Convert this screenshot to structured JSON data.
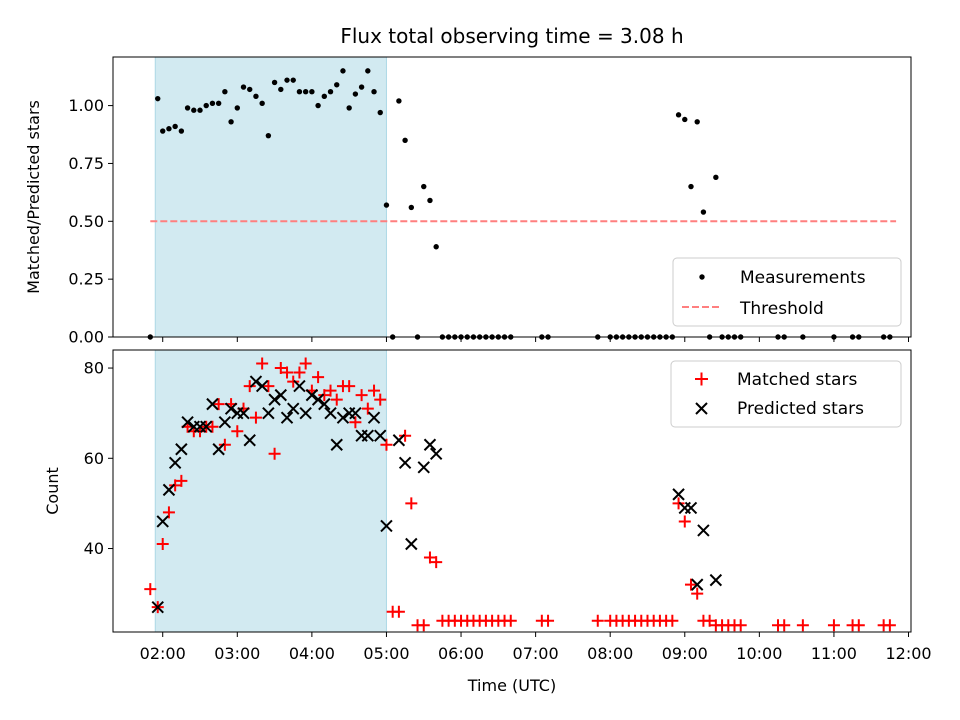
{
  "title": "Flux total observing time = 3.08 h",
  "xlabel": "Time (UTC)",
  "x_ticks": [
    "02:00",
    "03:00",
    "04:00",
    "05:00",
    "06:00",
    "07:00",
    "08:00",
    "09:00",
    "10:00",
    "11:00",
    "12:00"
  ],
  "colors": {
    "shaded_region": "#add8e6",
    "measurements": "#000000",
    "threshold": "#ff7f7f",
    "matched": "#ff0000",
    "predicted": "#000000"
  },
  "chart_data": [
    {
      "type": "scatter",
      "panel": "top",
      "ylabel": "Matched/Predicted stars",
      "xlim": [
        "01:20",
        "12:02"
      ],
      "ylim": [
        0,
        1.21
      ],
      "y_ticks": [
        "0.00",
        "0.25",
        "0.50",
        "0.75",
        "1.00"
      ],
      "y_tick_values": [
        0,
        0.25,
        0.5,
        0.75,
        1.0
      ],
      "shaded_span": [
        "01:54",
        "05:00"
      ],
      "threshold": {
        "name": "Threshold",
        "value": 0.5,
        "x_range": [
          "01:50",
          "11:50"
        ]
      },
      "legend": {
        "position": "lower-right",
        "entries": [
          "Measurements",
          "Threshold"
        ]
      },
      "series": [
        {
          "name": "Measurements",
          "points": [
            [
              "01:50",
              0.0
            ],
            [
              "01:56",
              1.03
            ],
            [
              "02:00",
              0.89
            ],
            [
              "02:05",
              0.9
            ],
            [
              "02:10",
              0.91
            ],
            [
              "02:15",
              0.89
            ],
            [
              "02:20",
              0.99
            ],
            [
              "02:25",
              0.98
            ],
            [
              "02:30",
              0.98
            ],
            [
              "02:35",
              1.0
            ],
            [
              "02:40",
              1.01
            ],
            [
              "02:45",
              1.01
            ],
            [
              "02:50",
              1.06
            ],
            [
              "02:55",
              0.93
            ],
            [
              "03:00",
              0.99
            ],
            [
              "03:05",
              1.08
            ],
            [
              "03:10",
              1.07
            ],
            [
              "03:15",
              1.04
            ],
            [
              "03:20",
              1.01
            ],
            [
              "03:25",
              0.87
            ],
            [
              "03:30",
              1.1
            ],
            [
              "03:35",
              1.07
            ],
            [
              "03:40",
              1.11
            ],
            [
              "03:45",
              1.11
            ],
            [
              "03:50",
              1.06
            ],
            [
              "03:55",
              1.06
            ],
            [
              "04:00",
              1.06
            ],
            [
              "04:05",
              1.0
            ],
            [
              "04:10",
              1.04
            ],
            [
              "04:15",
              1.06
            ],
            [
              "04:20",
              1.09
            ],
            [
              "04:25",
              1.15
            ],
            [
              "04:30",
              0.99
            ],
            [
              "04:35",
              1.05
            ],
            [
              "04:40",
              1.08
            ],
            [
              "04:45",
              1.15
            ],
            [
              "04:50",
              1.06
            ],
            [
              "04:55",
              0.97
            ],
            [
              "05:00",
              0.57
            ],
            [
              "05:05",
              0.0
            ],
            [
              "05:10",
              1.02
            ],
            [
              "05:15",
              0.85
            ],
            [
              "05:20",
              0.56
            ],
            [
              "05:25",
              0.0
            ],
            [
              "05:30",
              0.65
            ],
            [
              "05:35",
              0.59
            ],
            [
              "05:40",
              0.39
            ],
            [
              "05:45",
              0.0
            ],
            [
              "05:50",
              0.0
            ],
            [
              "05:55",
              0.0
            ],
            [
              "06:00",
              0.0
            ],
            [
              "06:05",
              0.0
            ],
            [
              "06:10",
              0.0
            ],
            [
              "06:15",
              0.0
            ],
            [
              "06:20",
              0.0
            ],
            [
              "06:25",
              0.0
            ],
            [
              "06:30",
              0.0
            ],
            [
              "06:35",
              0.0
            ],
            [
              "06:40",
              0.0
            ],
            [
              "07:05",
              0.0
            ],
            [
              "07:10",
              0.0
            ],
            [
              "07:50",
              0.0
            ],
            [
              "08:00",
              0.0
            ],
            [
              "08:05",
              0.0
            ],
            [
              "08:10",
              0.0
            ],
            [
              "08:15",
              0.0
            ],
            [
              "08:20",
              0.0
            ],
            [
              "08:25",
              0.0
            ],
            [
              "08:30",
              0.0
            ],
            [
              "08:35",
              0.0
            ],
            [
              "08:40",
              0.0
            ],
            [
              "08:45",
              0.0
            ],
            [
              "08:50",
              0.0
            ],
            [
              "08:55",
              0.96
            ],
            [
              "09:00",
              0.94
            ],
            [
              "09:05",
              0.65
            ],
            [
              "09:10",
              0.93
            ],
            [
              "09:15",
              0.54
            ],
            [
              "09:20",
              0.0
            ],
            [
              "09:25",
              0.69
            ],
            [
              "09:30",
              0.0
            ],
            [
              "09:35",
              0.0
            ],
            [
              "09:40",
              0.0
            ],
            [
              "09:45",
              0.0
            ],
            [
              "10:15",
              0.0
            ],
            [
              "10:20",
              0.0
            ],
            [
              "10:35",
              0.0
            ],
            [
              "11:00",
              0.0
            ],
            [
              "11:15",
              0.0
            ],
            [
              "11:20",
              0.0
            ],
            [
              "11:40",
              0.0
            ],
            [
              "11:45",
              0.0
            ]
          ]
        }
      ]
    },
    {
      "type": "scatter",
      "panel": "bottom",
      "ylabel": "Count",
      "xlim": [
        "01:20",
        "12:02"
      ],
      "ylim": [
        21.5,
        84
      ],
      "y_ticks": [
        "40",
        "60",
        "80"
      ],
      "y_tick_values": [
        40,
        60,
        80
      ],
      "shaded_span": [
        "01:54",
        "05:00"
      ],
      "legend": {
        "position": "top-right",
        "entries": [
          "Matched stars",
          "Predicted stars"
        ]
      },
      "series": [
        {
          "name": "Matched stars",
          "marker": "plus",
          "points": [
            [
              "01:50",
              31
            ],
            [
              "01:56",
              27
            ],
            [
              "02:00",
              41
            ],
            [
              "02:05",
              48
            ],
            [
              "02:10",
              54
            ],
            [
              "02:15",
              55
            ],
            [
              "02:20",
              67
            ],
            [
              "02:25",
              66
            ],
            [
              "02:30",
              66
            ],
            [
              "02:35",
              67
            ],
            [
              "02:40",
              67
            ],
            [
              "02:45",
              72
            ],
            [
              "02:50",
              63
            ],
            [
              "02:55",
              72
            ],
            [
              "03:00",
              66
            ],
            [
              "03:05",
              71
            ],
            [
              "03:10",
              76
            ],
            [
              "03:15",
              69
            ],
            [
              "03:20",
              81
            ],
            [
              "03:25",
              76
            ],
            [
              "03:30",
              61
            ],
            [
              "03:35",
              80
            ],
            [
              "03:40",
              79
            ],
            [
              "03:45",
              77
            ],
            [
              "03:50",
              79
            ],
            [
              "03:55",
              81
            ],
            [
              "04:00",
              75
            ],
            [
              "04:05",
              78
            ],
            [
              "04:10",
              74
            ],
            [
              "04:15",
              75
            ],
            [
              "04:20",
              73
            ],
            [
              "04:25",
              76
            ],
            [
              "04:30",
              76
            ],
            [
              "04:35",
              68
            ],
            [
              "04:40",
              74
            ],
            [
              "04:45",
              71
            ],
            [
              "04:50",
              75
            ],
            [
              "04:55",
              73
            ],
            [
              "05:00",
              63
            ],
            [
              "05:05",
              26
            ],
            [
              "05:10",
              26
            ],
            [
              "05:15",
              65
            ],
            [
              "05:20",
              50
            ],
            [
              "05:25",
              23
            ],
            [
              "05:30",
              23
            ],
            [
              "05:35",
              38
            ],
            [
              "05:40",
              37
            ],
            [
              "05:45",
              24
            ],
            [
              "05:50",
              24
            ],
            [
              "05:55",
              24
            ],
            [
              "06:00",
              24
            ],
            [
              "06:05",
              24
            ],
            [
              "06:10",
              24
            ],
            [
              "06:15",
              24
            ],
            [
              "06:20",
              24
            ],
            [
              "06:25",
              24
            ],
            [
              "06:30",
              24
            ],
            [
              "06:35",
              24
            ],
            [
              "06:40",
              24
            ],
            [
              "07:05",
              24
            ],
            [
              "07:10",
              24
            ],
            [
              "07:50",
              24
            ],
            [
              "08:00",
              24
            ],
            [
              "08:05",
              24
            ],
            [
              "08:10",
              24
            ],
            [
              "08:15",
              24
            ],
            [
              "08:20",
              24
            ],
            [
              "08:25",
              24
            ],
            [
              "08:30",
              24
            ],
            [
              "08:35",
              24
            ],
            [
              "08:40",
              24
            ],
            [
              "08:45",
              24
            ],
            [
              "08:50",
              24
            ],
            [
              "08:55",
              50
            ],
            [
              "09:00",
              46
            ],
            [
              "09:05",
              32
            ],
            [
              "09:10",
              30
            ],
            [
              "09:15",
              24
            ],
            [
              "09:20",
              24
            ],
            [
              "09:25",
              23
            ],
            [
              "09:30",
              23
            ],
            [
              "09:35",
              23
            ],
            [
              "09:40",
              23
            ],
            [
              "09:45",
              23
            ],
            [
              "10:15",
              23
            ],
            [
              "10:20",
              23
            ],
            [
              "10:35",
              23
            ],
            [
              "11:00",
              23
            ],
            [
              "11:15",
              23
            ],
            [
              "11:20",
              23
            ],
            [
              "11:40",
              23
            ],
            [
              "11:45",
              23
            ]
          ]
        },
        {
          "name": "Predicted stars",
          "marker": "x",
          "points": [
            [
              "01:56",
              27
            ],
            [
              "02:00",
              46
            ],
            [
              "02:05",
              53
            ],
            [
              "02:10",
              59
            ],
            [
              "02:15",
              62
            ],
            [
              "02:20",
              68
            ],
            [
              "02:25",
              67
            ],
            [
              "02:30",
              67
            ],
            [
              "02:35",
              67
            ],
            [
              "02:40",
              72
            ],
            [
              "02:45",
              62
            ],
            [
              "02:50",
              68
            ],
            [
              "02:55",
              71
            ],
            [
              "03:00",
              70
            ],
            [
              "03:05",
              70
            ],
            [
              "03:10",
              64
            ],
            [
              "03:15",
              77
            ],
            [
              "03:20",
              76
            ],
            [
              "03:25",
              70
            ],
            [
              "03:30",
              73
            ],
            [
              "03:35",
              74
            ],
            [
              "03:40",
              69
            ],
            [
              "03:45",
              71
            ],
            [
              "03:50",
              76
            ],
            [
              "03:55",
              70
            ],
            [
              "04:00",
              74
            ],
            [
              "04:05",
              73
            ],
            [
              "04:10",
              72
            ],
            [
              "04:15",
              70
            ],
            [
              "04:20",
              63
            ],
            [
              "04:25",
              69
            ],
            [
              "04:30",
              70
            ],
            [
              "04:35",
              70
            ],
            [
              "04:40",
              65
            ],
            [
              "04:45",
              65
            ],
            [
              "04:50",
              69
            ],
            [
              "04:55",
              65
            ],
            [
              "05:00",
              45
            ],
            [
              "05:10",
              64
            ],
            [
              "05:15",
              59
            ],
            [
              "05:20",
              41
            ],
            [
              "05:30",
              58
            ],
            [
              "05:35",
              63
            ],
            [
              "05:40",
              61
            ],
            [
              "08:55",
              52
            ],
            [
              "09:00",
              49
            ],
            [
              "09:05",
              49
            ],
            [
              "09:10",
              32
            ],
            [
              "09:15",
              44
            ],
            [
              "09:25",
              33
            ]
          ]
        }
      ]
    }
  ]
}
